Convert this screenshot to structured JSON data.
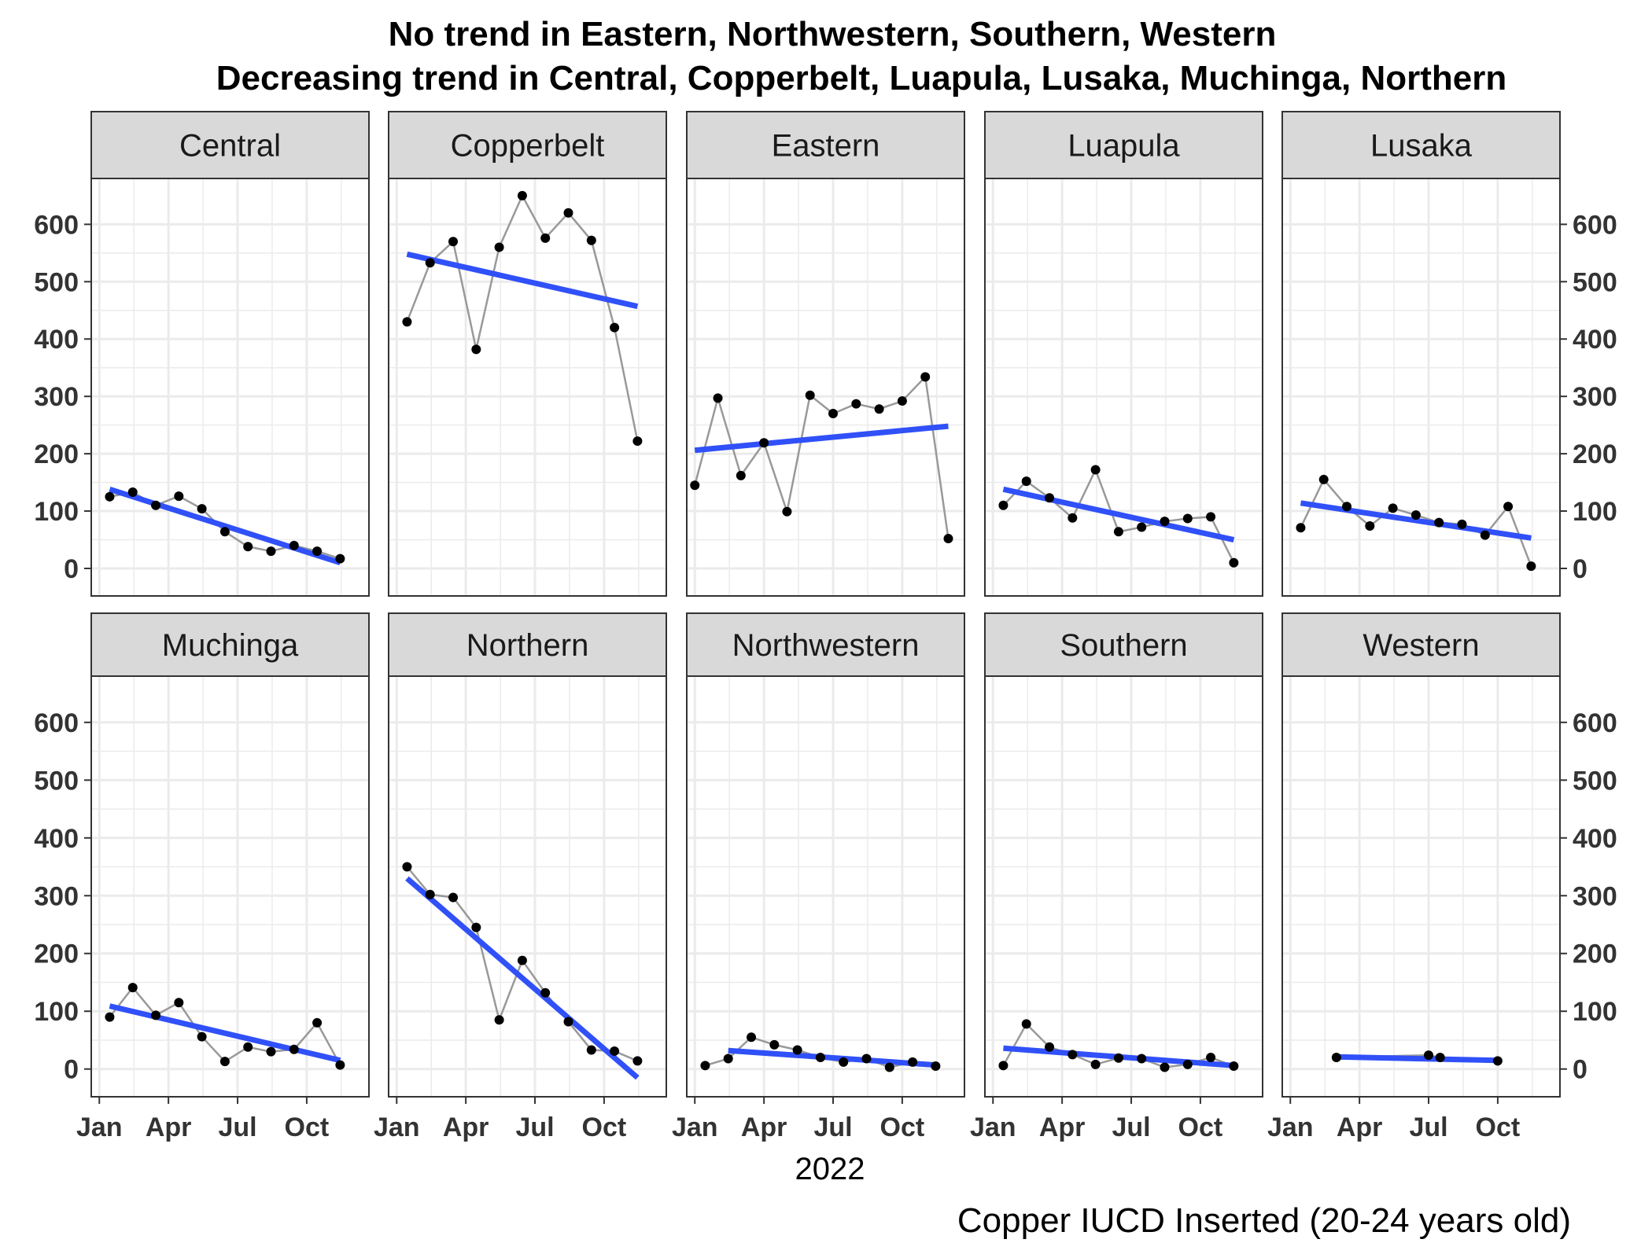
{
  "chart_data": {
    "type": "line",
    "title_lines": [
      "No trend in Eastern, Northwestern, Southern, Western",
      "Decreasing trend in Central, Copperbelt, Luapula, Lusaka, Muchinga, Northern"
    ],
    "xlabel": "2022",
    "caption": "Copper IUCD Inserted (20-24 years old)",
    "x_ticks": [
      "Jan",
      "Apr",
      "Jul",
      "Oct"
    ],
    "x_tick_months": [
      1,
      4,
      7,
      10
    ],
    "y_ticks": [
      0,
      100,
      200,
      300,
      400,
      500,
      600
    ],
    "xlim_months": [
      0.65,
      12.7
    ],
    "ylim": [
      -48,
      680
    ],
    "grid": true,
    "colors": {
      "trend": "#3050f8",
      "series_line": "#999999",
      "point": "#000000",
      "strip_fill": "#d9d9d9",
      "grid": "#ebebeb"
    },
    "panels": [
      {
        "name": "Central",
        "months": [
          1,
          2,
          3,
          4,
          5,
          6,
          7,
          8,
          9,
          10,
          11,
          12
        ],
        "values": [
          125,
          133,
          110,
          126,
          104,
          64,
          38,
          30,
          40,
          30,
          17
        ],
        "x_months": [
          1.45,
          2.45,
          3.45,
          4.45,
          5.45,
          6.45,
          7.45,
          8.45,
          9.45,
          10.45,
          11.45
        ],
        "trend": [
          [
            1.45,
            138
          ],
          [
            11.45,
            10
          ]
        ]
      },
      {
        "name": "Copperbelt",
        "x_months": [
          1.45,
          2.45,
          3.45,
          4.45,
          5.45,
          6.45,
          7.45,
          8.45,
          9.45,
          10.45,
          11.45
        ],
        "values": [
          430,
          533,
          570,
          382,
          560,
          650,
          576,
          620,
          572,
          420,
          222
        ],
        "trend": [
          [
            1.45,
            548
          ],
          [
            11.45,
            457
          ]
        ]
      },
      {
        "name": "Eastern",
        "x_months": [
          1,
          2,
          3,
          4,
          5,
          6,
          7,
          8,
          9,
          10,
          11,
          12
        ],
        "values": [
          145,
          297,
          162,
          219,
          99,
          302,
          270,
          287,
          278,
          292,
          334,
          52
        ],
        "trend": [
          [
            1,
            206
          ],
          [
            12,
            248
          ]
        ]
      },
      {
        "name": "Luapula",
        "x_months": [
          1.45,
          2.45,
          3.45,
          4.45,
          5.45,
          6.45,
          7.45,
          8.45,
          9.45,
          10.45,
          11.45
        ],
        "values": [
          110,
          152,
          123,
          88,
          172,
          64,
          72,
          82,
          87,
          90,
          10
        ],
        "trend": [
          [
            1.45,
            138
          ],
          [
            11.45,
            50
          ]
        ]
      },
      {
        "name": "Lusaka",
        "x_months": [
          1.45,
          2.45,
          3.45,
          4.45,
          5.45,
          6.45,
          7.45,
          8.45,
          9.45,
          10.45,
          11.45
        ],
        "values": [
          71,
          155,
          108,
          74,
          105,
          93,
          80,
          77,
          58,
          108,
          4
        ],
        "trend": [
          [
            1.45,
            114
          ],
          [
            11.45,
            53
          ]
        ]
      },
      {
        "name": "Muchinga",
        "x_months": [
          1.45,
          2.45,
          3.45,
          4.45,
          5.45,
          6.45,
          7.45,
          8.45,
          9.45,
          10.45,
          11.45
        ],
        "values": [
          90,
          141,
          93,
          115,
          56,
          13,
          38,
          30,
          34,
          80,
          7
        ],
        "trend": [
          [
            1.45,
            109
          ],
          [
            11.45,
            15
          ]
        ]
      },
      {
        "name": "Northern",
        "x_months": [
          1.45,
          2.45,
          3.45,
          4.45,
          5.45,
          6.45,
          7.45,
          8.45,
          9.45,
          10.45,
          11.45
        ],
        "values": [
          350,
          302,
          297,
          245,
          85,
          188,
          132,
          82,
          33,
          31,
          14
        ],
        "trend": [
          [
            1.45,
            330
          ],
          [
            11.45,
            -15
          ]
        ]
      },
      {
        "name": "Northwestern",
        "x_months": [
          1.45,
          2.45,
          3.45,
          4.45,
          5.45,
          6.45,
          7.45,
          8.45,
          9.45,
          10.45,
          11.45
        ],
        "values": [
          6,
          18,
          55,
          42,
          33,
          20,
          12,
          18,
          3,
          12,
          5
        ],
        "trend": [
          [
            2.45,
            32
          ],
          [
            11.45,
            7
          ]
        ]
      },
      {
        "name": "Southern",
        "x_months": [
          1.45,
          2.45,
          3.45,
          4.45,
          5.45,
          6.45,
          7.45,
          8.45,
          9.45,
          10.45,
          11.45
        ],
        "values": [
          6,
          78,
          38,
          25,
          8,
          19,
          18,
          3,
          8,
          20,
          5
        ],
        "trend": [
          [
            1.45,
            36
          ],
          [
            11.45,
            6
          ]
        ]
      },
      {
        "name": "Western",
        "x_months": [
          3,
          7,
          7.5,
          10
        ],
        "values": [
          20,
          24,
          20,
          14
        ],
        "trend": [
          [
            3,
            21
          ],
          [
            10,
            15
          ]
        ]
      }
    ]
  }
}
